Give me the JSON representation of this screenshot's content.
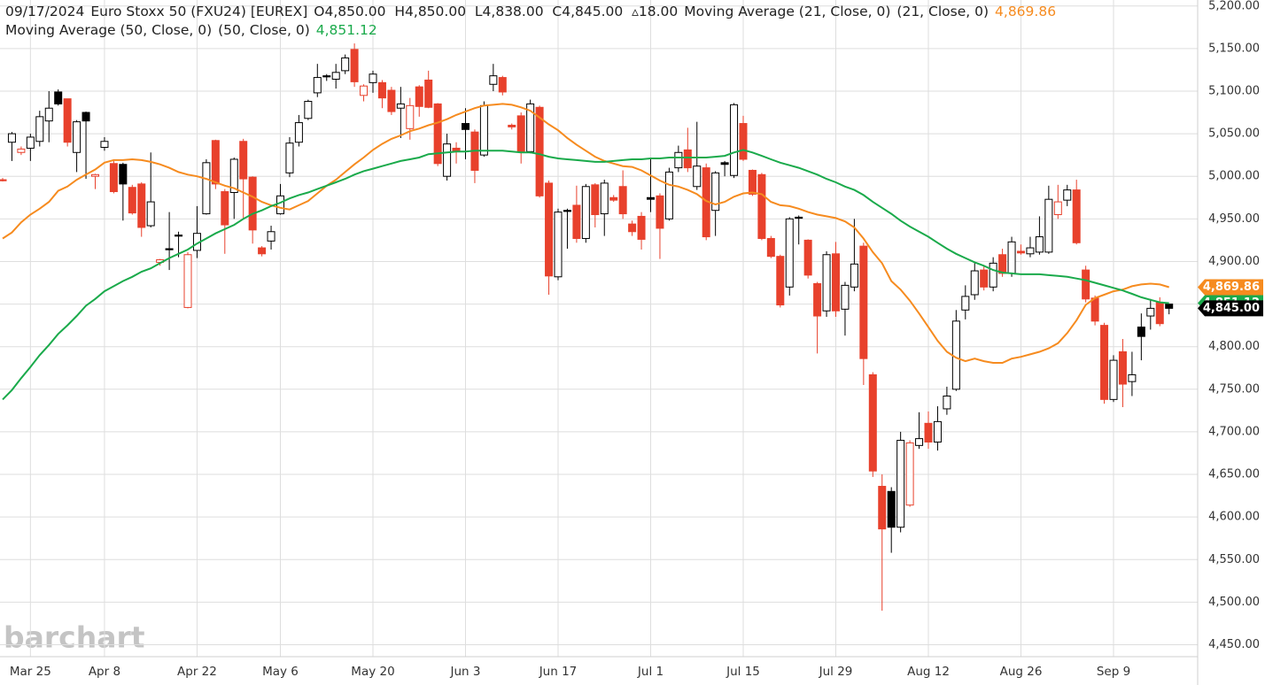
{
  "chart_data": {
    "type": "candlestick",
    "header": {
      "date": "09/17/2024",
      "symbol": "Euro Stoxx 50 (FXU24) [EUREX]",
      "ohlc": "O4,850.00  H4,850.00  L4,838.00  C4,845.00  ▵18.00"
    },
    "watermark": "barchart",
    "categories": [
      null,
      null,
      null,
      "Mar 25",
      null,
      null,
      null,
      null,
      null,
      null,
      null,
      "Apr 8",
      null,
      null,
      null,
      null,
      null,
      null,
      null,
      null,
      null,
      "Apr 22",
      null,
      null,
      null,
      null,
      null,
      null,
      null,
      null,
      "May 6",
      null,
      null,
      null,
      null,
      null,
      null,
      null,
      null,
      null,
      "May 20",
      null,
      null,
      null,
      null,
      null,
      null,
      null,
      null,
      null,
      "Jun 3",
      null,
      null,
      null,
      null,
      null,
      null,
      null,
      null,
      null,
      "Jun 17",
      null,
      null,
      null,
      null,
      null,
      null,
      null,
      null,
      null,
      "Jul 1",
      null,
      null,
      null,
      null,
      null,
      null,
      null,
      null,
      null,
      "Jul 15",
      null,
      null,
      null,
      null,
      null,
      null,
      null,
      null,
      null,
      "Jul 29",
      null,
      null,
      null,
      null,
      null,
      null,
      null,
      null,
      null,
      "Aug 12",
      null,
      null,
      null,
      null,
      null,
      null,
      null,
      null,
      null,
      "Aug 26",
      null,
      null,
      null,
      null,
      null,
      null,
      null,
      null,
      null,
      "Sep 9",
      null,
      null,
      null,
      null,
      null,
      null
    ],
    "open": [
      4996,
      5040,
      5028,
      5033,
      5041,
      5065,
      5099,
      5091,
      5028,
      5075,
      5000,
      5034,
      5015,
      5014,
      4987,
      4991,
      4942,
      4899,
      4915,
      4931,
      4846,
      4913,
      4956,
      5042,
      4982,
      4981,
      5041,
      4999,
      4916,
      4924,
      4956,
      5004,
      5040,
      5068,
      5098,
      5118,
      5114,
      5124,
      5149,
      5095,
      5110,
      5110,
      5101,
      5080,
      5056,
      5105,
      5113,
      5085,
      5000,
      5033,
      5062,
      5052,
      5025,
      5108,
      5116,
      5060,
      5071,
      5029,
      5081,
      4992,
      4882,
      4960,
      4966,
      4927,
      4990,
      4956,
      4975,
      4988,
      4944,
      4953,
      4975,
      4977,
      4950,
      5010,
      5031,
      4988,
      5010,
      4960,
      5016,
      5001,
      5062,
      5007,
      5002,
      4927,
      4906,
      4870,
      4952,
      4925,
      4874,
      4842,
      4909,
      4844,
      4870,
      4918,
      4767,
      4636,
      4630,
      4588,
      4614,
      4684,
      4710,
      4688,
      4727,
      4750,
      4843,
      4861,
      4890,
      4870,
      4908,
      4886,
      4912,
      4909,
      4911,
      4911,
      4955,
      4972,
      4984,
      4890,
      4857,
      4825,
      4738,
      4794,
      4759,
      4823,
      4836,
      4852,
      4850
    ],
    "high": [
      4998,
      5052,
      5035,
      5050,
      5077,
      5100,
      5102,
      5091,
      5066,
      5076,
      5003,
      5046,
      5018,
      5016,
      4990,
      4993,
      5028,
      4903,
      4958,
      4935,
      4911,
      4965,
      5020,
      5043,
      4985,
      5022,
      5044,
      5000,
      4918,
      4942,
      4991,
      5046,
      5072,
      5090,
      5132,
      5120,
      5132,
      5143,
      5156,
      5108,
      5124,
      5113,
      5105,
      5105,
      5092,
      5107,
      5124,
      5086,
      5050,
      5040,
      5080,
      5055,
      5088,
      5132,
      5118,
      5062,
      5075,
      5090,
      5083,
      4995,
      4962,
      4962,
      4989,
      4991,
      4992,
      4996,
      4978,
      5007,
      4948,
      4958,
      5020,
      4980,
      5010,
      5036,
      5057,
      5064,
      5015,
      5006,
      5018,
      5086,
      5071,
      5008,
      5004,
      4930,
      4908,
      4952,
      4954,
      4926,
      4876,
      4912,
      4923,
      4876,
      4950,
      4922,
      4770,
      4650,
      4635,
      4700,
      4690,
      4723,
      4724,
      4730,
      4753,
      4843,
      4872,
      4898,
      4895,
      4905,
      4915,
      4929,
      4920,
      4929,
      4953,
      4989,
      4990,
      4990,
      4996,
      4895,
      4860,
      4828,
      4790,
      4809,
      4794,
      4839,
      4856,
      4858,
      4850
    ],
    "low": [
      4994,
      5018,
      5025,
      5018,
      5035,
      5040,
      5083,
      5035,
      5005,
      4997,
      4985,
      5030,
      4980,
      4948,
      4955,
      4929,
      4940,
      4895,
      4890,
      4905,
      4845,
      4904,
      4955,
      4985,
      4909,
      4950,
      4950,
      4921,
      4906,
      4914,
      4955,
      4999,
      5035,
      5066,
      5093,
      5112,
      5103,
      5120,
      5105,
      5088,
      5098,
      5080,
      5072,
      5045,
      5043,
      5070,
      5080,
      5012,
      4995,
      5015,
      5020,
      4992,
      5023,
      5100,
      5095,
      5055,
      5015,
      5027,
      4975,
      4861,
      4878,
      4915,
      4922,
      4922,
      4940,
      4930,
      4970,
      4950,
      4930,
      4914,
      4958,
      4903,
      4948,
      5005,
      5005,
      4984,
      4925,
      4930,
      5000,
      4998,
      5018,
      4977,
      4925,
      4904,
      4846,
      4860,
      4920,
      4880,
      4792,
      4835,
      4835,
      4813,
      4865,
      4755,
      4647,
      4490,
      4558,
      4582,
      4612,
      4680,
      4680,
      4678,
      4720,
      4748,
      4832,
      4855,
      4866,
      4865,
      4882,
      4882,
      4908,
      4905,
      4908,
      4909,
      4950,
      4965,
      4920,
      4852,
      4825,
      4733,
      4735,
      4729,
      4742,
      4784,
      4820,
      4824,
      4838
    ],
    "close": [
      4995,
      5050,
      5032,
      5046,
      5070,
      5080,
      5085,
      5040,
      5064,
      5065,
      5002,
      5041,
      4982,
      4991,
      4957,
      4940,
      4970,
      4902,
      4914,
      4930,
      4908,
      4933,
      5016,
      4991,
      4943,
      5020,
      4997,
      4937,
      4909,
      4935,
      4977,
      5039,
      5063,
      5088,
      5116,
      5117,
      5122,
      5139,
      5111,
      5106,
      5120,
      5092,
      5076,
      5085,
      5083,
      5082,
      5081,
      5015,
      5038,
      5029,
      5055,
      5007,
      5083,
      5118,
      5099,
      5058,
      5029,
      5085,
      4977,
      4883,
      4958,
      4959,
      4927,
      4988,
      4955,
      4992,
      4972,
      4956,
      4935,
      4926,
      4973,
      4939,
      5005,
      5028,
      5010,
      5012,
      4929,
      5004,
      5014,
      5084,
      5020,
      4979,
      4927,
      4906,
      4849,
      4950,
      4951,
      4884,
      4836,
      4908,
      4842,
      4872,
      4897,
      4786,
      4654,
      4586,
      4588,
      4690,
      4687,
      4692,
      4688,
      4712,
      4742,
      4830,
      4859,
      4889,
      4870,
      4898,
      4886,
      4923,
      4910,
      4916,
      4929,
      4973,
      4970,
      4984,
      4922,
      4856,
      4830,
      4738,
      4784,
      4756,
      4767,
      4812,
      4845,
      4827,
      4845
    ],
    "last_close_label": "4,845.00",
    "up_color": "#000000",
    "down_color": "#e8412c",
    "series": [
      {
        "name": "Moving Average (21, Close, 0)",
        "params": "(21, Close, 0)",
        "color": "#f68b1f",
        "last_label": "4,869.86",
        "values": [
          4927,
          4934,
          4946,
          4955,
          4962,
          4970,
          4983,
          4988,
          4996,
          5002,
          5008,
          5016,
          5019,
          5019,
          5020,
          5019,
          5017,
          5014,
          5010,
          5005,
          5002,
          5000,
          4997,
          4993,
          4989,
          4986,
          4981,
          4976,
          4970,
          4966,
          4963,
          4961,
          4966,
          4971,
          4980,
          4989,
          4996,
          5005,
          5014,
          5022,
          5031,
          5038,
          5044,
          5048,
          5053,
          5056,
          5060,
          5063,
          5067,
          5072,
          5076,
          5080,
          5083,
          5084,
          5085,
          5084,
          5081,
          5077,
          5069,
          5061,
          5054,
          5045,
          5037,
          5030,
          5023,
          5018,
          5015,
          5012,
          5011,
          5007,
          5001,
          4995,
          4990,
          4988,
          4984,
          4979,
          4971,
          4967,
          4970,
          4976,
          4980,
          4981,
          4979,
          4970,
          4966,
          4965,
          4962,
          4958,
          4955,
          4953,
          4951,
          4947,
          4940,
          4927,
          4911,
          4898,
          4877,
          4867,
          4854,
          4839,
          4823,
          4807,
          4794,
          4787,
          4783,
          4786,
          4783,
          4781,
          4781,
          4786,
          4788,
          4791,
          4794,
          4798,
          4804,
          4816,
          4831,
          4849,
          4857,
          4861,
          4865,
          4867,
          4871,
          4873,
          4874,
          4873,
          4869.86
        ]
      },
      {
        "name": "Moving Average (50, Close, 0)",
        "params": "(50, Close, 0)",
        "color": "#1aaa4b",
        "last_label": "4,851.12",
        "values": [
          4738,
          4749,
          4763,
          4776,
          4790,
          4802,
          4815,
          4825,
          4836,
          4848,
          4856,
          4865,
          4871,
          4877,
          4882,
          4888,
          4892,
          4898,
          4904,
          4909,
          4914,
          4921,
          4927,
          4933,
          4938,
          4943,
          4950,
          4956,
          4960,
          4965,
          4969,
          4974,
          4978,
          4981,
          4985,
          4989,
          4993,
          4997,
          5002,
          5006,
          5009,
          5012,
          5015,
          5018,
          5020,
          5022,
          5026,
          5027,
          5028,
          5029,
          5029,
          5030,
          5030,
          5030,
          5030,
          5029,
          5028,
          5028,
          5026,
          5023,
          5021,
          5020,
          5019,
          5018,
          5017,
          5017,
          5018,
          5019,
          5020,
          5020,
          5021,
          5021,
          5022,
          5022,
          5022,
          5022,
          5022,
          5023,
          5024,
          5028,
          5031,
          5028,
          5024,
          5020,
          5016,
          5013,
          5010,
          5006,
          5002,
          4997,
          4993,
          4988,
          4984,
          4978,
          4970,
          4963,
          4956,
          4948,
          4941,
          4935,
          4929,
          4922,
          4915,
          4909,
          4904,
          4899,
          4895,
          4890,
          4887,
          4886,
          4885,
          4885,
          4885,
          4884,
          4883,
          4882,
          4880,
          4878,
          4875,
          4872,
          4869,
          4866,
          4862,
          4858,
          4855,
          4852,
          4851.12
        ]
      }
    ],
    "ylim": [
      4436,
      5207
    ],
    "yticks": [
      {
        "value": 5200,
        "label": "5,200.00"
      },
      {
        "value": 5150,
        "label": "5,150.00"
      },
      {
        "value": 5100,
        "label": "5,100.00"
      },
      {
        "value": 5050,
        "label": "5,050.00"
      },
      {
        "value": 5000,
        "label": "5,000.00"
      },
      {
        "value": 4950,
        "label": "4,950.00"
      },
      {
        "value": 4900,
        "label": "4,900.00"
      },
      {
        "value": 4850,
        "label": "4,850.00"
      },
      {
        "value": 4800,
        "label": "4,800.00"
      },
      {
        "value": 4750,
        "label": "4,750.00"
      },
      {
        "value": 4700,
        "label": "4,700.00"
      },
      {
        "value": 4650,
        "label": "4,650.00"
      },
      {
        "value": 4600,
        "label": "4,600.00"
      },
      {
        "value": 4550,
        "label": "4,550.00"
      },
      {
        "value": 4500,
        "label": "4,500.00"
      },
      {
        "value": 4450,
        "label": "4,450.00"
      }
    ],
    "grid": true
  }
}
